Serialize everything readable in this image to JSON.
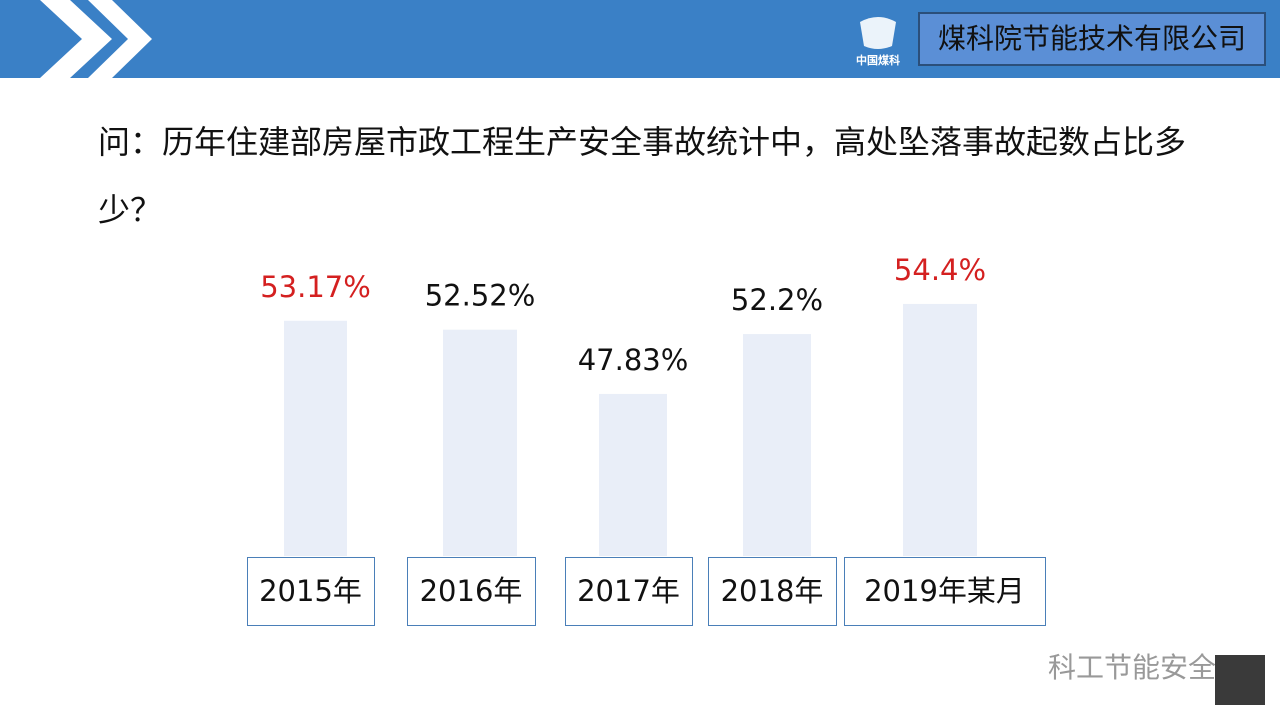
{
  "header": {
    "company": "煤科院节能技术有限公司",
    "logo_text": "中国煤科"
  },
  "question": "问：历年住建部房屋市政工程生产安全事故统计中，高处坠落事故起数占比多少？",
  "watermark": "科工节能安全",
  "chart_data": {
    "type": "bar",
    "categories": [
      "2015年",
      "2016年",
      "2017年",
      "2018年",
      "2019年某月"
    ],
    "values": [
      53.17,
      52.52,
      47.83,
      52.2,
      54.4
    ],
    "value_labels": [
      "53.17%",
      "52.52%",
      "47.83%",
      "52.2%",
      "54.4%"
    ],
    "label_colors": [
      "#d42020",
      "#111111",
      "#111111",
      "#111111",
      "#d42020"
    ],
    "color": "#e9eef8",
    "ylim": [
      36,
      56
    ]
  }
}
